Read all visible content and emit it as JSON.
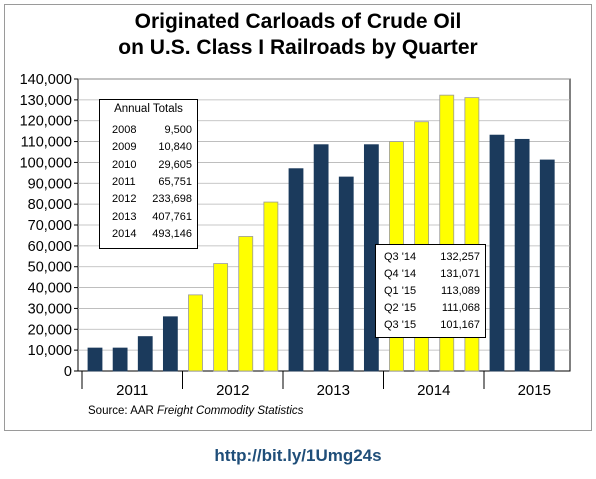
{
  "title_line1": "Originated Carloads of Crude Oil",
  "title_line2": "on U.S. Class I Railroads by Quarter",
  "source_prefix": "Source:  AAR ",
  "source_italic": "Freight Commodity Statistics",
  "url": "http://bit.ly/1Umg24s",
  "colors": {
    "navy": "#1b3a5c",
    "yellow": "#ffff00",
    "yellow_border": "#999999"
  },
  "annual_totals": {
    "header": "Annual Totals",
    "rows": [
      {
        "year": "2008",
        "value": "9,500"
      },
      {
        "year": "2009",
        "value": "10,840"
      },
      {
        "year": "2010",
        "value": "29,605"
      },
      {
        "year": "2011",
        "value": "65,751"
      },
      {
        "year": "2012",
        "value": "233,698"
      },
      {
        "year": "2013",
        "value": "407,761"
      },
      {
        "year": "2014",
        "value": "493,146"
      }
    ]
  },
  "recent_quarters": [
    {
      "quarter": "Q3 '14",
      "value": "132,257"
    },
    {
      "quarter": "Q4 '14",
      "value": "131,071"
    },
    {
      "quarter": "Q1 '15",
      "value": "113,089"
    },
    {
      "quarter": "Q2 '15",
      "value": "111,068"
    },
    {
      "quarter": "Q3 '15",
      "value": "101,167"
    }
  ],
  "chart_data": {
    "type": "bar",
    "title": "Originated Carloads of Crude Oil on U.S. Class I Railroads by Quarter",
    "xlabel": "",
    "ylabel": "",
    "ylim": [
      0,
      140000
    ],
    "yticks": [
      0,
      10000,
      20000,
      30000,
      40000,
      50000,
      60000,
      70000,
      80000,
      90000,
      100000,
      110000,
      120000,
      130000,
      140000
    ],
    "ytick_labels": [
      "0",
      "10,000",
      "20,000",
      "30,000",
      "40,000",
      "50,000",
      "60,000",
      "70,000",
      "80,000",
      "90,000",
      "100,000",
      "110,000",
      "120,000",
      "130,000",
      "140,000"
    ],
    "year_labels": [
      "2011",
      "2012",
      "2013",
      "2014",
      "2015"
    ],
    "grid": true,
    "categories": [
      "Q1 '11",
      "Q2 '11",
      "Q3 '11",
      "Q4 '11",
      "Q1 '12",
      "Q2 '12",
      "Q3 '12",
      "Q4 '12",
      "Q1 '13",
      "Q2 '13",
      "Q3 '13",
      "Q4 '13",
      "Q1 '14",
      "Q2 '14",
      "Q3 '14",
      "Q4 '14",
      "Q1 '15",
      "Q2 '15",
      "Q3 '15"
    ],
    "values": [
      11000,
      11000,
      16500,
      26000,
      36500,
      51500,
      64500,
      81000,
      97000,
      108500,
      93000,
      108500,
      110000,
      119500,
      132257,
      131071,
      113089,
      111068,
      101167
    ],
    "bar_colors": [
      "navy",
      "navy",
      "navy",
      "navy",
      "yellow",
      "yellow",
      "yellow",
      "yellow",
      "navy",
      "navy",
      "navy",
      "navy",
      "yellow",
      "yellow",
      "yellow",
      "yellow",
      "navy",
      "navy",
      "navy"
    ]
  }
}
